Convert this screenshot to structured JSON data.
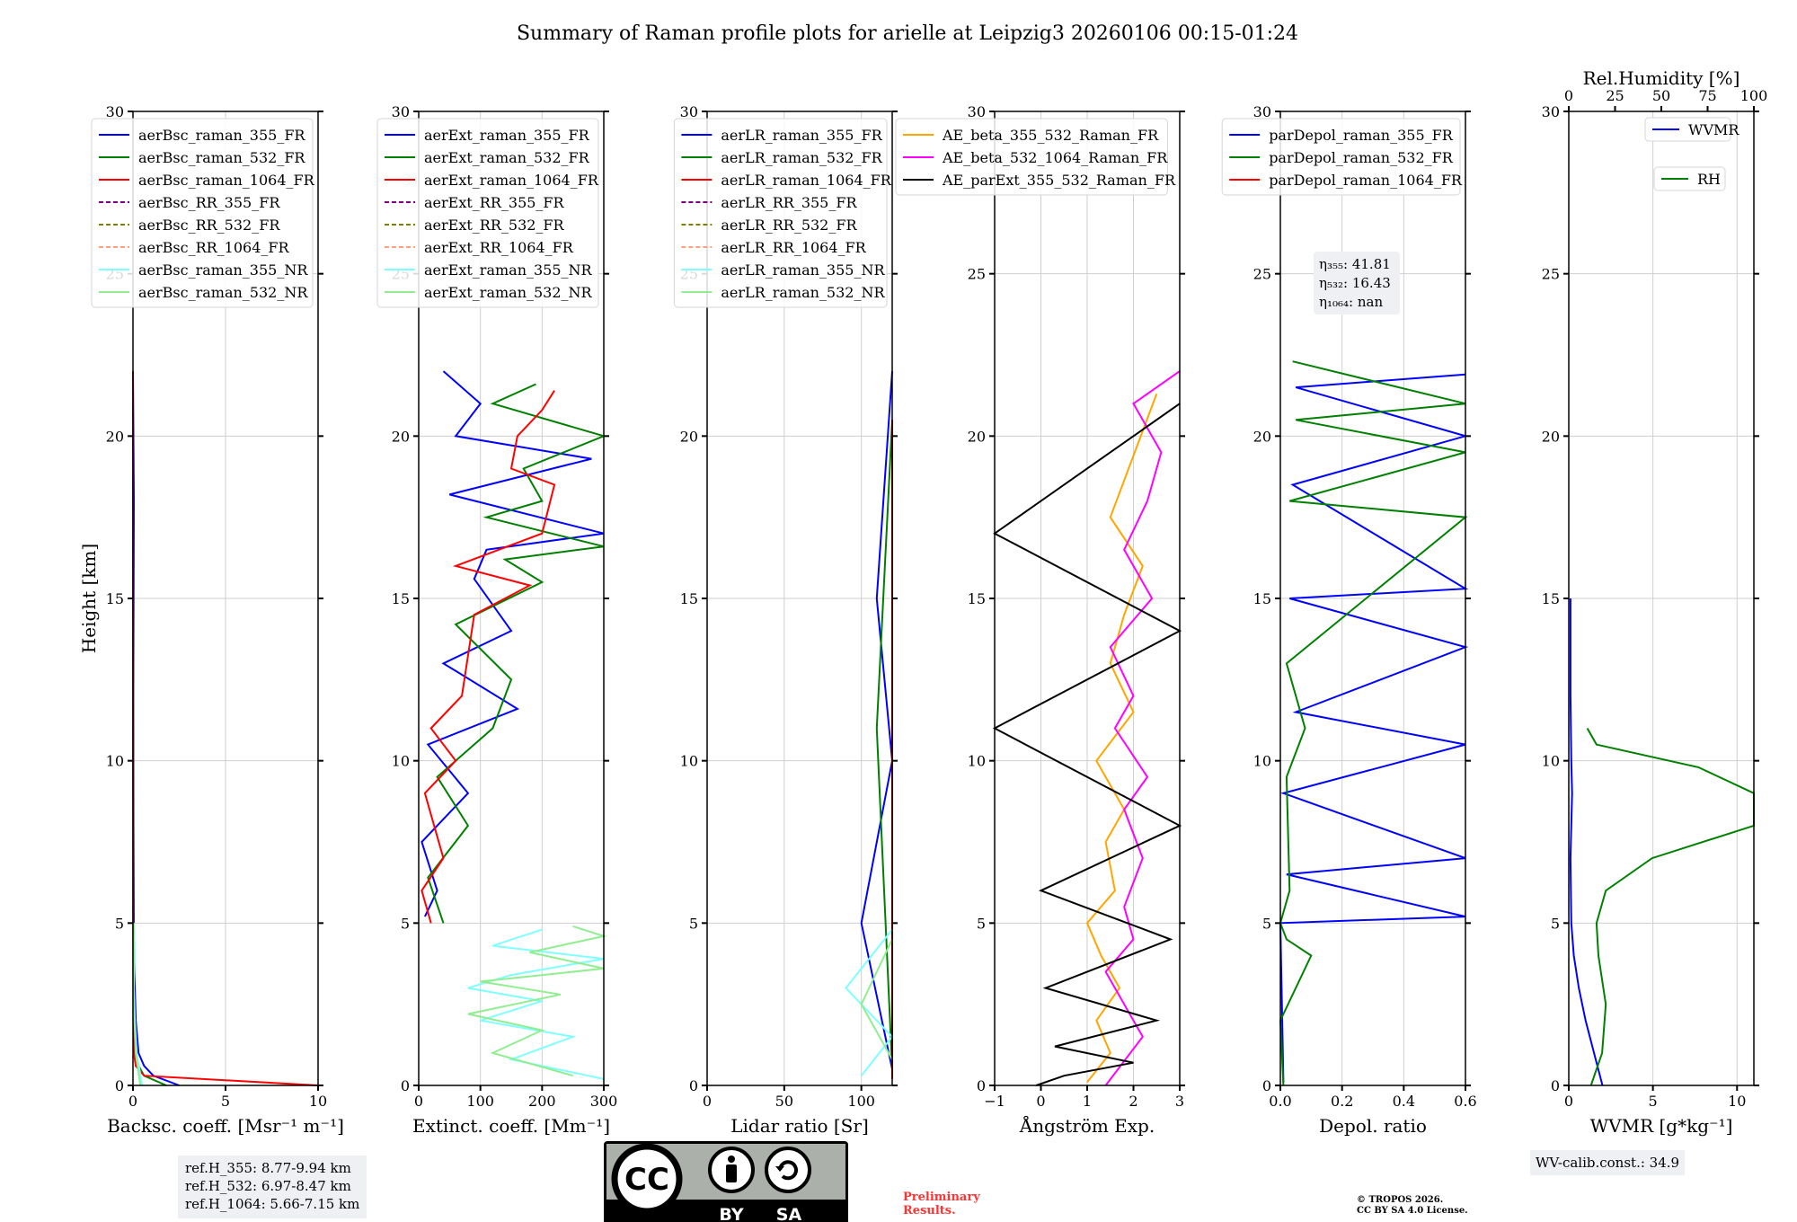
{
  "title": "Summary of Raman profile plots for arielle at Leipzig3 20260106 00:15-01:24",
  "shared": {
    "ylabel": "Height [km]",
    "ylim": [
      0,
      30
    ],
    "yticks": [
      0,
      5,
      10,
      15,
      20,
      25,
      30
    ]
  },
  "chart_data": [
    {
      "type": "line",
      "panel": "backscatter",
      "xlabel": "Backsc. coeff. [Msr⁻¹ m⁻¹]",
      "xlim": [
        0,
        10
      ],
      "xticks": [
        0,
        5,
        10
      ],
      "ylim": [
        0,
        30
      ],
      "legend": "top-right",
      "series": [
        {
          "name": "aerBsc_raman_355_FR",
          "color": "#0000ff",
          "style": "solid",
          "x": [
            2.5,
            1.1,
            0.6,
            0.3,
            0.15,
            0.1,
            0.05,
            0.03,
            0.02,
            0.05,
            0.0
          ],
          "y": [
            0.0,
            0.3,
            0.6,
            1.0,
            2.0,
            3.0,
            5.0,
            8.0,
            12.0,
            18.0,
            22.0
          ]
        },
        {
          "name": "aerBsc_raman_532_FR",
          "color": "#008000",
          "style": "solid",
          "x": [
            1.8,
            0.6,
            0.3,
            0.15,
            0.08,
            0.04,
            0.02,
            0.01,
            0.0
          ],
          "y": [
            0.0,
            0.3,
            0.6,
            1.0,
            2.0,
            3.0,
            5.0,
            10.0,
            22.0
          ]
        },
        {
          "name": "aerBsc_raman_1064_FR",
          "color": "#ff0000",
          "style": "solid",
          "x": [
            10.0,
            0.6,
            0.15,
            0.05,
            0.02,
            0.01,
            0.0
          ],
          "y": [
            0.0,
            0.3,
            0.6,
            1.0,
            2.0,
            5.0,
            22.0
          ]
        },
        {
          "name": "aerBsc_RR_355_FR",
          "color": "#800080",
          "style": "dashed",
          "x": [],
          "y": []
        },
        {
          "name": "aerBsc_RR_532_FR",
          "color": "#808000",
          "style": "dashed",
          "x": [],
          "y": []
        },
        {
          "name": "aerBsc_RR_1064_FR",
          "color": "#ffa07a",
          "style": "dashed",
          "x": [],
          "y": []
        },
        {
          "name": "aerBsc_raman_355_NR",
          "color": "#7fffff",
          "style": "solid",
          "x": [
            0.5,
            0.2,
            0.1,
            0.05,
            0.1,
            0.05
          ],
          "y": [
            0.0,
            1.0,
            2.0,
            3.0,
            4.0,
            5.0
          ]
        },
        {
          "name": "aerBsc_raman_532_NR",
          "color": "#90ee90",
          "style": "solid",
          "x": [
            0.4,
            0.15,
            0.08,
            0.04,
            0.05,
            0.04
          ],
          "y": [
            0.0,
            1.0,
            2.0,
            3.0,
            4.0,
            5.0
          ]
        }
      ]
    },
    {
      "type": "line",
      "panel": "extinction",
      "xlabel": "Extinct. coeff. [Mm⁻¹]",
      "xlim": [
        0,
        300
      ],
      "xticks": [
        0,
        100,
        200,
        300
      ],
      "ylim": [
        0,
        30
      ],
      "legend": "top-right",
      "series": [
        {
          "name": "aerExt_raman_355_FR",
          "color": "#0000ff",
          "style": "solid",
          "x": [
            10,
            30,
            5,
            80,
            15,
            160,
            40,
            150,
            90,
            110,
            300,
            50,
            280,
            60,
            100,
            40
          ],
          "y": [
            5.2,
            6.0,
            7.5,
            9.0,
            10.5,
            11.6,
            13.0,
            14.0,
            15.6,
            16.5,
            17.0,
            18.2,
            19.3,
            20.0,
            21.0,
            22.0
          ]
        },
        {
          "name": "aerExt_raman_532_FR",
          "color": "#008000",
          "style": "solid",
          "x": [
            40,
            15,
            80,
            30,
            120,
            150,
            60,
            200,
            140,
            300,
            110,
            200,
            170,
            300,
            120,
            190
          ],
          "y": [
            5.0,
            6.4,
            8.0,
            9.5,
            11.0,
            12.5,
            14.2,
            15.5,
            16.2,
            16.6,
            17.5,
            18.0,
            19.0,
            20.0,
            21.0,
            21.6
          ]
        },
        {
          "name": "aerExt_raman_1064_FR",
          "color": "#ff0000",
          "style": "solid",
          "x": [
            20,
            5,
            40,
            10,
            60,
            20,
            70,
            90,
            180,
            60,
            200,
            220,
            150,
            160,
            200,
            220
          ],
          "y": [
            5.0,
            6.0,
            7.0,
            9.0,
            10.0,
            11.0,
            12.0,
            14.5,
            15.4,
            16.0,
            17.0,
            18.5,
            19.0,
            20.0,
            20.8,
            21.4
          ]
        },
        {
          "name": "aerExt_RR_355_FR",
          "color": "#800080",
          "style": "dashed",
          "x": [],
          "y": []
        },
        {
          "name": "aerExt_RR_532_FR",
          "color": "#808000",
          "style": "dashed",
          "x": [],
          "y": []
        },
        {
          "name": "aerExt_RR_1064_FR",
          "color": "#ffa07a",
          "style": "dashed",
          "x": [],
          "y": []
        },
        {
          "name": "aerExt_raman_355_NR",
          "color": "#7fffff",
          "style": "solid",
          "x": [
            300,
            150,
            250,
            100,
            200,
            80,
            150,
            300,
            120,
            200
          ],
          "y": [
            0.2,
            0.8,
            1.5,
            2.0,
            2.6,
            3.0,
            3.4,
            3.9,
            4.3,
            4.8
          ]
        },
        {
          "name": "aerExt_raman_532_NR",
          "color": "#90ee90",
          "style": "solid",
          "x": [
            250,
            120,
            200,
            80,
            230,
            100,
            300,
            180,
            300,
            250
          ],
          "y": [
            0.3,
            1.0,
            1.7,
            2.2,
            2.8,
            3.2,
            3.6,
            4.1,
            4.6,
            4.9
          ]
        }
      ]
    },
    {
      "type": "line",
      "panel": "lidar_ratio",
      "xlabel": "Lidar ratio [Sr]",
      "xlim": [
        0,
        120
      ],
      "xticks": [
        0,
        50,
        100
      ],
      "ylim": [
        0,
        30
      ],
      "legend": "top-right",
      "series": [
        {
          "name": "aerLR_raman_355_FR",
          "color": "#0000ff",
          "style": "solid",
          "x": [
            120,
            100,
            120,
            110,
            120
          ],
          "y": [
            0.5,
            5.0,
            10.0,
            15.0,
            22.0
          ]
        },
        {
          "name": "aerLR_raman_532_FR",
          "color": "#008000",
          "style": "solid",
          "x": [
            120,
            110,
            120
          ],
          "y": [
            0.5,
            11.0,
            20.5
          ]
        },
        {
          "name": "aerLR_raman_1064_FR",
          "color": "#ff0000",
          "style": "solid",
          "x": [
            120,
            120,
            120
          ],
          "y": [
            0.2,
            10.0,
            20.5
          ]
        },
        {
          "name": "aerLR_RR_355_FR",
          "color": "#800080",
          "style": "dashed",
          "x": [],
          "y": []
        },
        {
          "name": "aerLR_RR_532_FR",
          "color": "#808000",
          "style": "dashed",
          "x": [],
          "y": []
        },
        {
          "name": "aerLR_RR_1064_FR",
          "color": "#ffa07a",
          "style": "dashed",
          "x": [],
          "y": []
        },
        {
          "name": "aerLR_raman_355_NR",
          "color": "#7fffff",
          "style": "solid",
          "x": [
            100,
            120,
            90,
            120
          ],
          "y": [
            0.3,
            1.5,
            3.0,
            4.8
          ]
        },
        {
          "name": "aerLR_raman_532_NR",
          "color": "#90ee90",
          "style": "solid",
          "x": [
            120,
            100,
            120
          ],
          "y": [
            0.8,
            2.5,
            4.5
          ]
        }
      ]
    },
    {
      "type": "line",
      "panel": "angstrom",
      "xlabel": "Ångström Exp.",
      "xlim": [
        -1,
        3
      ],
      "xticks": [
        -1,
        0,
        1,
        2,
        3
      ],
      "ylim": [
        0,
        30
      ],
      "legend": "top-right",
      "series": [
        {
          "name": "AE_beta_355_532_Raman_FR",
          "color": "#ffa500",
          "style": "solid",
          "x": [
            1.0,
            1.5,
            1.2,
            1.7,
            1.3,
            1.0,
            1.6,
            1.4,
            1.8,
            1.2,
            2.0,
            1.5,
            1.8,
            2.2,
            1.5,
            2.5
          ],
          "y": [
            0.1,
            1.0,
            2.0,
            3.0,
            4.0,
            5.0,
            6.0,
            7.5,
            8.5,
            10.0,
            11.5,
            13.0,
            14.5,
            16.0,
            17.5,
            21.3
          ]
        },
        {
          "name": "AE_beta_532_1064_Raman_FR",
          "color": "#ff00ff",
          "style": "solid",
          "x": [
            1.4,
            2.2,
            1.4,
            2.0,
            1.8,
            2.2,
            1.8,
            2.3,
            1.6,
            2.0,
            1.5,
            2.4,
            1.8,
            2.3,
            2.6,
            2.0,
            3.0
          ],
          "y": [
            0.0,
            1.5,
            3.5,
            4.5,
            5.5,
            7.0,
            8.5,
            9.5,
            11.0,
            12.0,
            13.5,
            15.0,
            16.5,
            18.0,
            19.5,
            21.0,
            22.0
          ]
        },
        {
          "name": "AE_parExt_355_532_Raman_FR",
          "color": "#000000",
          "style": "solid",
          "x": [
            -0.1,
            0.5,
            2.0,
            0.3,
            2.5,
            0.1,
            2.8,
            0.0,
            3.0,
            -1.0,
            3.0,
            -1.0,
            3.0
          ],
          "y": [
            0.0,
            0.3,
            0.7,
            1.2,
            2.0,
            3.0,
            4.5,
            6.0,
            8.0,
            11.0,
            14.0,
            17.0,
            21.0
          ]
        }
      ]
    },
    {
      "type": "line",
      "panel": "depolarization",
      "xlabel": "Depol. ratio",
      "xlim": [
        0.0,
        0.6
      ],
      "xticks": [
        "0.0",
        "0.2",
        "0.4",
        "0.6"
      ],
      "ylim": [
        0,
        30
      ],
      "legend": "top-right",
      "annotations": [
        "η₃₅₅: 41.81",
        "η₅₃₂: 16.43",
        "η₁₀₆₄: nan"
      ],
      "series": [
        {
          "name": "parDepol_raman_355_FR",
          "color": "#0000ff",
          "style": "solid",
          "x": [
            0.01,
            0.0,
            0.6,
            0.02,
            0.6,
            0.01,
            0.6,
            0.05,
            0.6,
            0.03,
            0.6,
            0.04,
            0.6,
            0.05,
            0.6
          ],
          "y": [
            0.1,
            5.0,
            5.2,
            6.5,
            7.0,
            9.0,
            10.5,
            11.5,
            13.5,
            15.0,
            15.3,
            18.5,
            20.0,
            21.5,
            21.9
          ]
        },
        {
          "name": "parDepol_raman_532_FR",
          "color": "#008000",
          "style": "solid",
          "x": [
            0.01,
            0.0,
            0.1,
            0.02,
            0.0,
            0.03,
            0.02,
            0.08,
            0.02,
            0.6,
            0.03,
            0.6,
            0.05,
            0.6,
            0.04
          ],
          "y": [
            0.0,
            2.0,
            4.0,
            4.5,
            5.0,
            6.0,
            9.5,
            11.0,
            13.0,
            17.5,
            18.0,
            19.5,
            20.5,
            21.0,
            22.3
          ]
        },
        {
          "name": "parDepol_raman_1064_FR",
          "color": "#ff0000",
          "style": "solid",
          "x": [],
          "y": []
        }
      ]
    },
    {
      "type": "line",
      "panel": "water_vapor",
      "xlabel": "WVMR [g*kg⁻¹]",
      "xlim": [
        0,
        11
      ],
      "xticks": [
        0,
        5,
        10
      ],
      "ylim": [
        0,
        30
      ],
      "top_axis": {
        "label": "Rel.Humidity [%]",
        "lim": [
          0,
          100
        ],
        "ticks": [
          0,
          25,
          50,
          75,
          100
        ]
      },
      "legend": "top-right",
      "annotation": "WV-calib.const.: 34.9",
      "series": [
        {
          "name": "WVMR",
          "color": "#0000ff",
          "style": "solid",
          "axis": "bottom",
          "x": [
            2.0,
            1.5,
            1.0,
            0.6,
            0.3,
            0.15,
            0.1,
            0.2,
            0.15,
            0.1,
            0.1
          ],
          "y": [
            0.0,
            1.0,
            2.0,
            3.0,
            4.0,
            5.0,
            7.0,
            9.0,
            10.0,
            12.0,
            15.0
          ]
        },
        {
          "name": "RH",
          "color": "#008000",
          "style": "solid",
          "axis": "top",
          "x": [
            12.0,
            18.0,
            20.0,
            16.0,
            15.0,
            20.0,
            45.0,
            100.0,
            100.0,
            70.0,
            15.0,
            10.0
          ],
          "y": [
            0.0,
            1.0,
            2.5,
            4.0,
            5.0,
            6.0,
            7.0,
            8.0,
            9.0,
            9.8,
            10.5,
            11.0
          ]
        }
      ]
    }
  ],
  "footer": {
    "ref_lines": [
      "ref.H_355: 8.77-9.94 km",
      "ref.H_532: 6.97-8.47 km",
      "ref.H_1064: 5.66-7.15 km"
    ],
    "license_badge": {
      "cc": "CC",
      "by": "BY",
      "sa": "SA"
    },
    "preliminary": [
      "Preliminary",
      "Results."
    ],
    "copyright": [
      "© TROPOS 2026.",
      "CC BY SA 4.0 License."
    ]
  }
}
